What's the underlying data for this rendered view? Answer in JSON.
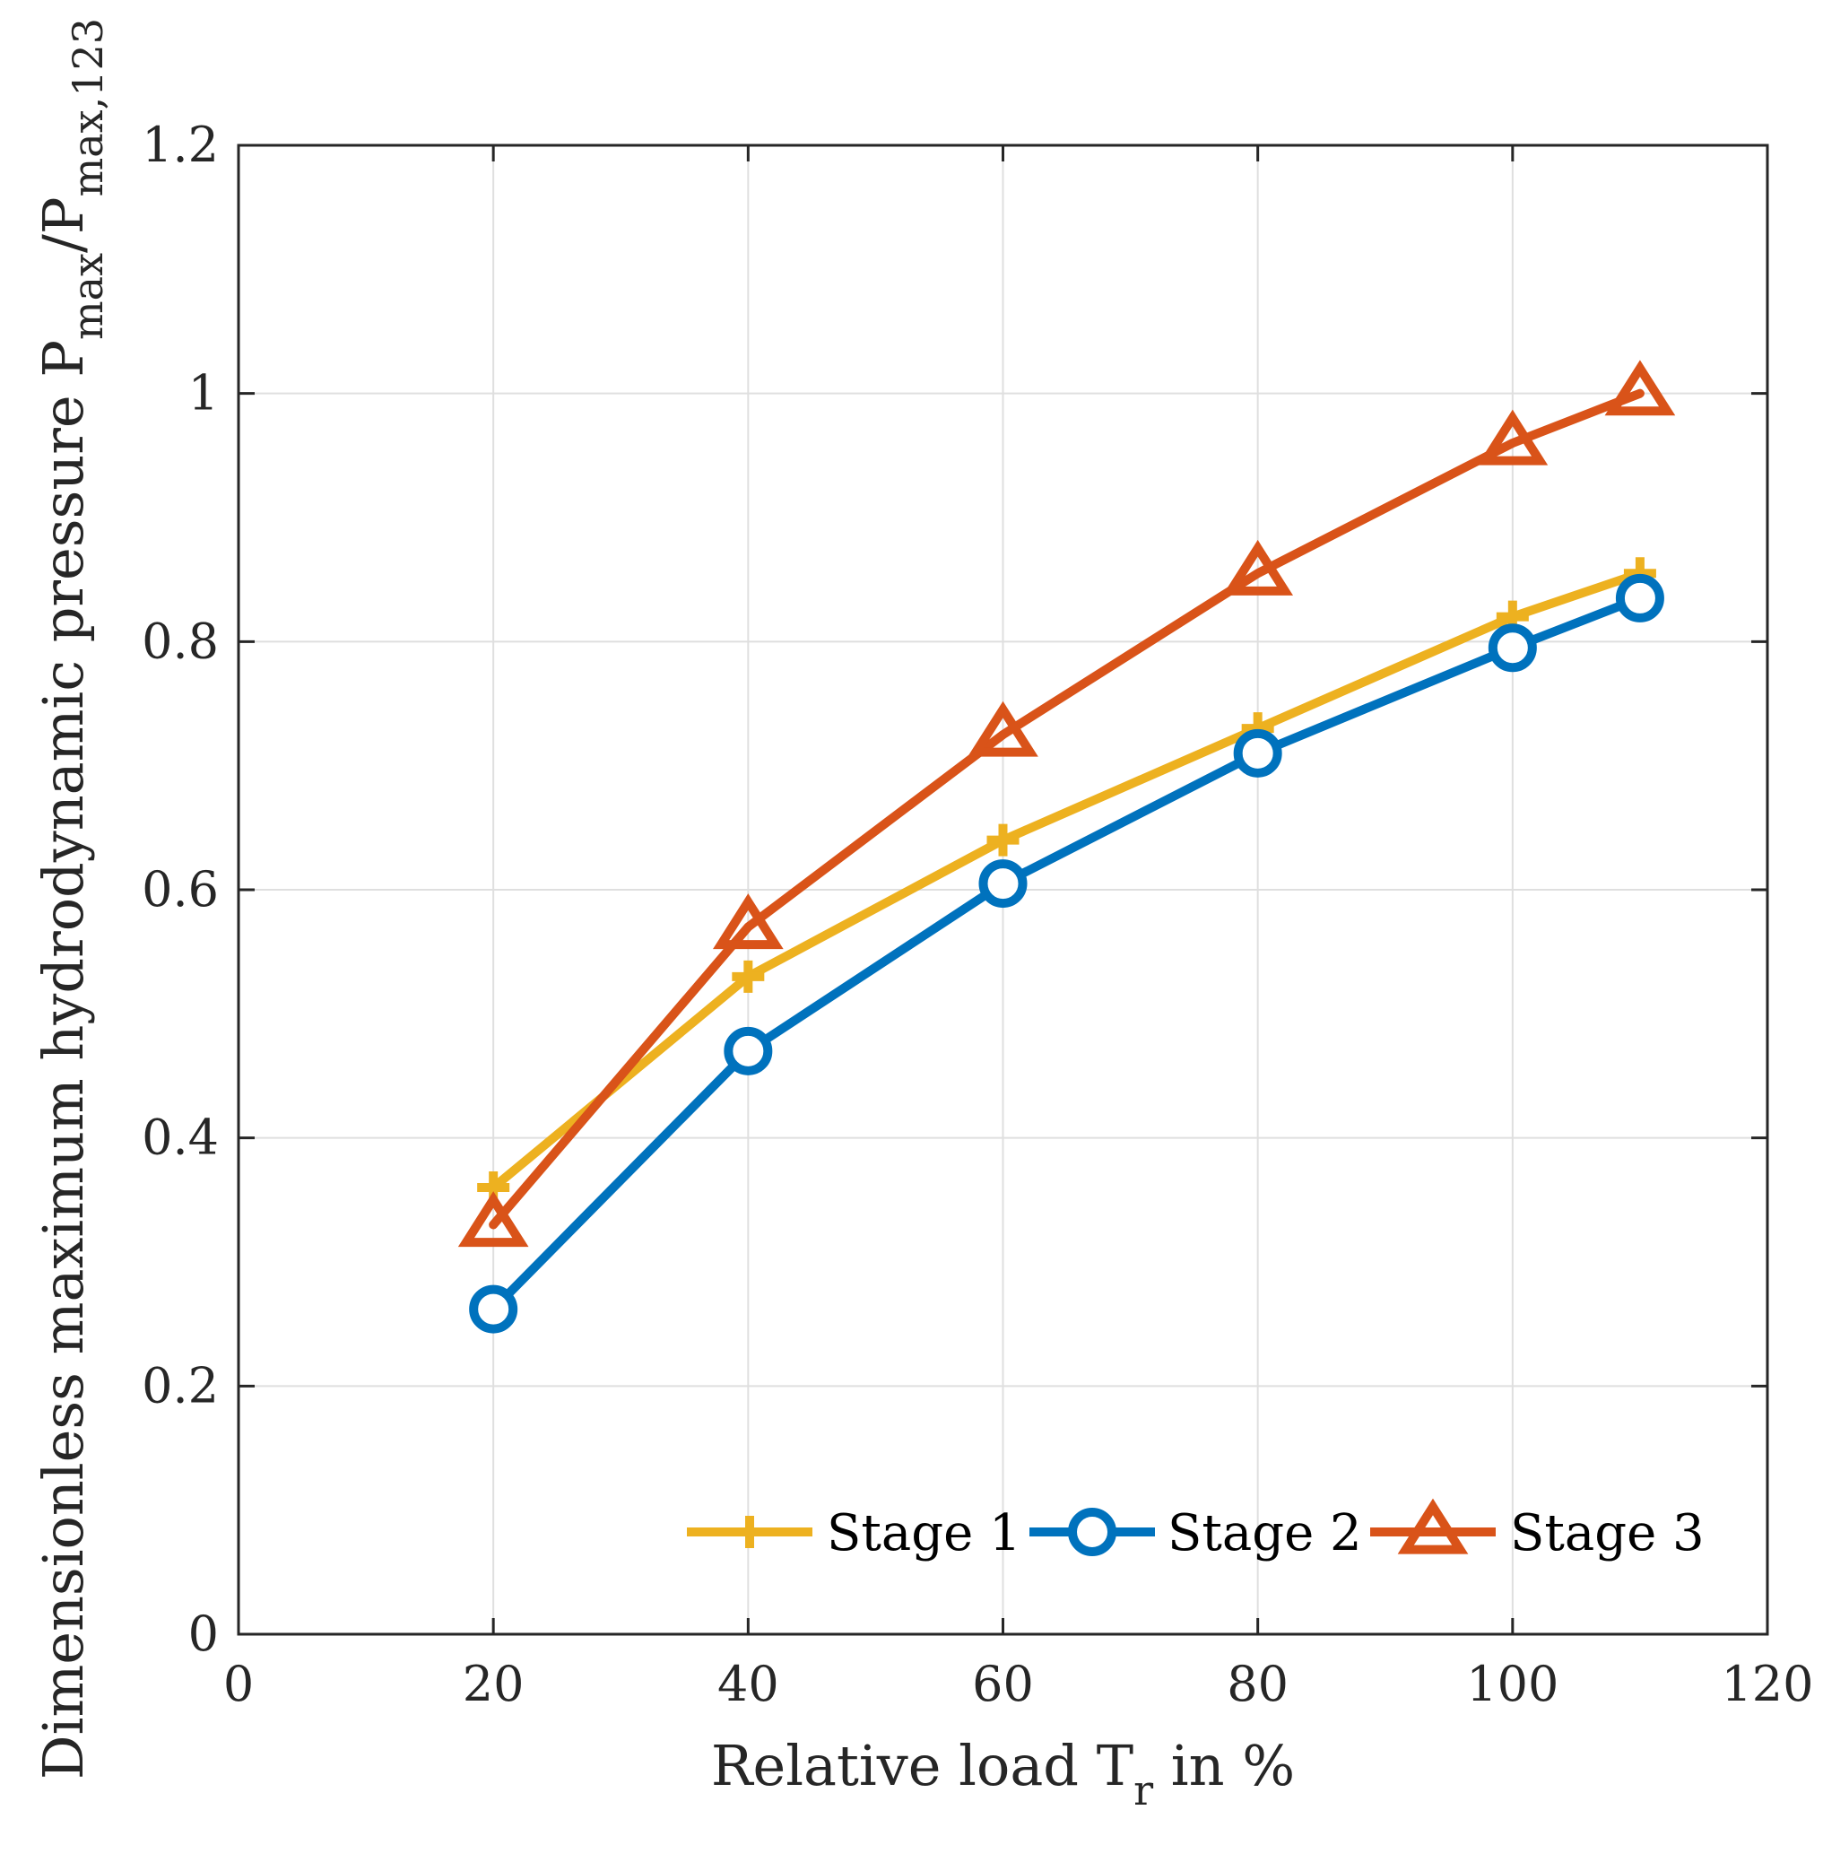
{
  "chart_data": {
    "type": "line",
    "x": [
      20,
      40,
      60,
      80,
      100,
      110
    ],
    "series": [
      {
        "name": "Stage 1",
        "color": "#EDB120",
        "marker": "plus",
        "values": [
          0.36,
          0.53,
          0.64,
          0.73,
          0.82,
          0.855
        ]
      },
      {
        "name": "Stage 2",
        "color": "#0072BD",
        "marker": "circle",
        "values": [
          0.262,
          0.47,
          0.605,
          0.71,
          0.795,
          0.835
        ]
      },
      {
        "name": "Stage 3",
        "color": "#D95319",
        "marker": "triangle",
        "values": [
          0.33,
          0.57,
          0.725,
          0.855,
          0.96,
          1.0
        ]
      }
    ],
    "xlim": [
      0,
      120
    ],
    "ylim": [
      0,
      1.2
    ],
    "xticks": [
      0,
      20,
      40,
      60,
      80,
      100,
      120
    ],
    "yticks": [
      0,
      0.2,
      0.4,
      0.6,
      0.8,
      1,
      1.2
    ],
    "xtick_labels": [
      "0",
      "20",
      "40",
      "60",
      "80",
      "100",
      "120"
    ],
    "ytick_labels": [
      "0",
      "0.2",
      "0.4",
      "0.6",
      "0.8",
      "1",
      "1.2"
    ],
    "xlabel": {
      "main": "Relative load T",
      "sub": "r",
      "tail": " in %"
    },
    "ylabel": {
      "main": "Dimensionless maximum hydrodynamic pressure P",
      "sub1": "max",
      "mid": "/P",
      "sub2": "max,123"
    },
    "grid": true,
    "legend": {
      "placement": "bottom-right",
      "orientation": "horizontal"
    }
  }
}
